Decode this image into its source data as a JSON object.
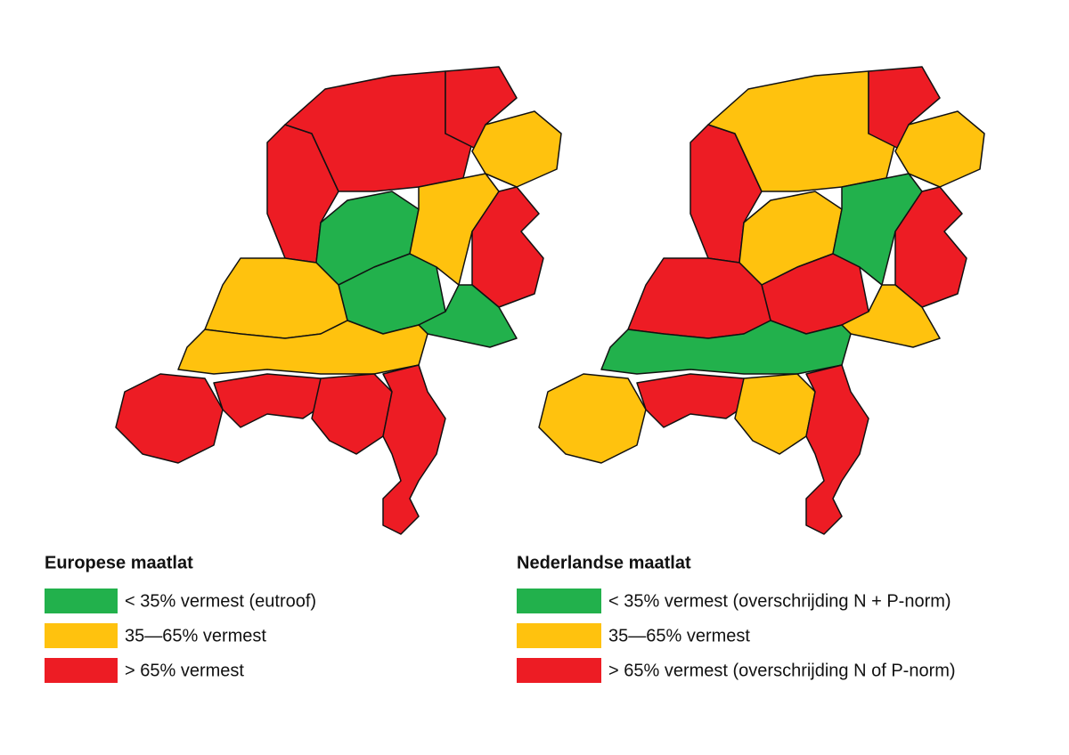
{
  "legends": [
    {
      "title": "Europese maatlat",
      "items": [
        {
          "label": "< 35% vermest (eutroof)",
          "color": "#22b14c"
        },
        {
          "label": "35—65% vermest",
          "color": "#ffc20e"
        },
        {
          "label": "> 65% vermest",
          "color": "#ed1c24"
        }
      ]
    },
    {
      "title": "Nederlandse maatlat",
      "items": [
        {
          "label": "< 35% vermest (overschrijding N + P-norm)",
          "color": "#22b14c"
        },
        {
          "label": "35—65% vermest",
          "color": "#ffc20e"
        },
        {
          "label": "> 65% vermest (overschrijding N of P-norm)",
          "color": "#ed1c24"
        }
      ]
    }
  ]
}
